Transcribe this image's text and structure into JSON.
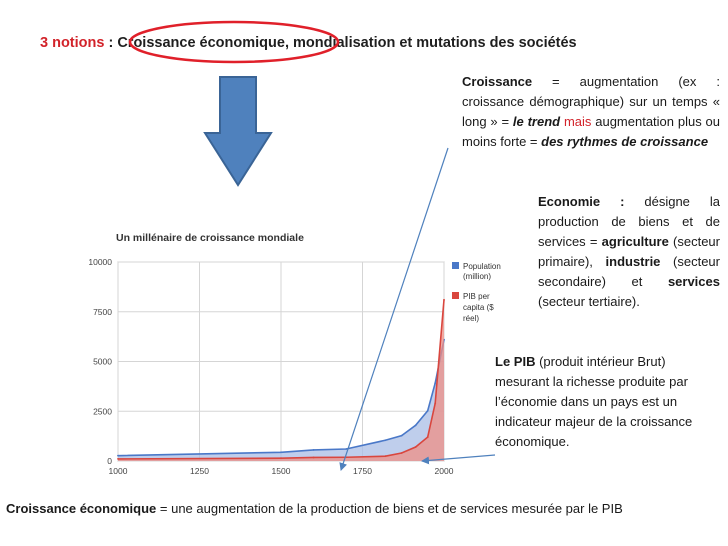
{
  "title": {
    "number": "3 notions",
    "rest": " : Croissance économique, mondialisation et mutations des sociétés"
  },
  "croissance_def": {
    "term": "Croissance",
    "p1": " = augmentation (ex : croissance démographique) sur un temps « long » = ",
    "trend": "le trend",
    "mais": " mais ",
    "p2": "augmentation plus ou moins forte = ",
    "rythmes": "des rythmes de croissance"
  },
  "economie_def": {
    "term": "Economie :",
    "p1": " désigne la production de biens et de services = ",
    "agri": "agriculture",
    "p2": " (secteur primaire), ",
    "indus": "industrie",
    "p3": " (secteur secondaire) et ",
    "serv": "services",
    "p4": " (secteur tertiaire)."
  },
  "pib_def": {
    "term": "Le PIB",
    "text": " (produit intérieur Brut) mesurant la richesse produite par l’économie dans un pays est un indicateur majeur de la croissance économique."
  },
  "bottom": {
    "term": "Croissance économique",
    "text": " = une augmentation de la production de biens et de services mesurée par le PIB"
  },
  "colors": {
    "accent_red": "#d2232a",
    "arrow_blue": "#4f81bd",
    "population": "#4a78c8",
    "pib": "#d9463e"
  },
  "chart_data": {
    "type": "area",
    "title": "Un millénaire de croissance mondiale",
    "x": [
      1000,
      1500,
      1600,
      1700,
      1820,
      1870,
      1913,
      1950,
      1973,
      2000
    ],
    "series": [
      {
        "name": "Population (million)",
        "values": [
          268,
          438,
          556,
          603,
          1042,
          1272,
          1793,
          2525,
          3916,
          6100
        ]
      },
      {
        "name": "PIB per capita ($ réel)",
        "values": [
          105,
          142,
          178,
          189,
          242,
          402,
          702,
          1202,
          2900,
          8100
        ]
      }
    ],
    "xlim": [
      1000,
      2000
    ],
    "ylim": [
      0,
      10000
    ],
    "xticks": [
      "1000",
      "1250",
      "1500",
      "1750",
      "2000"
    ],
    "yticks": [
      "0",
      "2500",
      "5000",
      "7500",
      "10000"
    ],
    "legend_position": "right",
    "legend": [
      "Population",
      "(million)",
      "PIB per",
      "capita ($",
      "réel)"
    ],
    "grid": true
  }
}
